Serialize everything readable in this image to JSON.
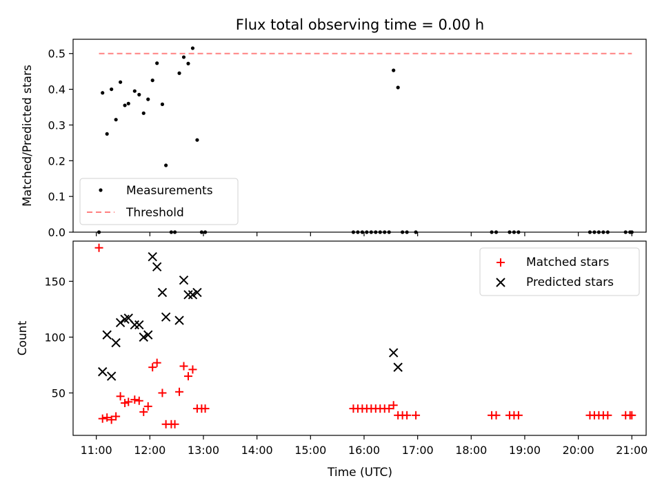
{
  "figure": {
    "title": "Flux total observing time = 0.00 h"
  },
  "chart_data": [
    {
      "type": "scatter",
      "title": "Flux total observing time = 0.00 h",
      "xlabel": "",
      "ylabel": "Matched/Predicted stars",
      "xlim": [
        "10:34",
        "21:16"
      ],
      "ylim": [
        0,
        0.54
      ],
      "yticks": [
        "0.0",
        "0.1",
        "0.2",
        "0.3",
        "0.4",
        "0.5"
      ],
      "legend": {
        "placement": "lower-left",
        "entries": [
          "Measurements",
          "Threshold"
        ]
      },
      "series": [
        {
          "name": "Measurements",
          "color": "#000000",
          "marker": "dot",
          "points": [
            [
              "11:03",
              0.0
            ],
            [
              "11:07",
              0.39
            ],
            [
              "11:12",
              0.275
            ],
            [
              "11:17",
              0.4
            ],
            [
              "11:22",
              0.315
            ],
            [
              "11:27",
              0.42
            ],
            [
              "11:32",
              0.355
            ],
            [
              "11:36",
              0.36
            ],
            [
              "11:43",
              0.395
            ],
            [
              "11:48",
              0.385
            ],
            [
              "11:53",
              0.333
            ],
            [
              "11:58",
              0.372
            ],
            [
              "12:03",
              0.425
            ],
            [
              "12:08",
              0.473
            ],
            [
              "12:14",
              0.358
            ],
            [
              "12:18",
              0.187
            ],
            [
              "12:24",
              0.0
            ],
            [
              "12:28",
              0.0
            ],
            [
              "12:33",
              0.445
            ],
            [
              "12:38",
              0.49
            ],
            [
              "12:43",
              0.472
            ],
            [
              "12:48",
              0.515
            ],
            [
              "12:53",
              0.258
            ],
            [
              "12:58",
              0.0
            ],
            [
              "13:02",
              0.0
            ],
            [
              "15:48",
              0.0
            ],
            [
              "15:53",
              0.0
            ],
            [
              "15:58",
              0.0
            ],
            [
              "16:03",
              0.0
            ],
            [
              "16:08",
              0.0
            ],
            [
              "16:13",
              0.0
            ],
            [
              "16:18",
              0.0
            ],
            [
              "16:23",
              0.0
            ],
            [
              "16:28",
              0.0
            ],
            [
              "16:33",
              0.453
            ],
            [
              "16:38",
              0.405
            ],
            [
              "16:43",
              0.0
            ],
            [
              "16:48",
              0.0
            ],
            [
              "16:58",
              0.0
            ],
            [
              "18:23",
              0.0
            ],
            [
              "18:28",
              0.0
            ],
            [
              "18:43",
              0.0
            ],
            [
              "18:48",
              0.0
            ],
            [
              "18:53",
              0.0
            ],
            [
              "20:13",
              0.0
            ],
            [
              "20:18",
              0.0
            ],
            [
              "20:23",
              0.0
            ],
            [
              "20:28",
              0.0
            ],
            [
              "20:33",
              0.0
            ],
            [
              "20:53",
              0.0
            ],
            [
              "20:58",
              0.0
            ],
            [
              "21:00",
              0.0
            ]
          ]
        },
        {
          "name": "Threshold",
          "color": "#ff8080",
          "style": "dashed",
          "points": [
            [
              "11:03",
              0.5
            ],
            [
              "21:00",
              0.5
            ]
          ]
        }
      ]
    },
    {
      "type": "scatter",
      "title": "",
      "xlabel": "Time (UTC)",
      "ylabel": "Count",
      "xlim": [
        "10:34",
        "21:16"
      ],
      "ylim": [
        12,
        186
      ],
      "yticks": [
        "50",
        "100",
        "150"
      ],
      "xticks": [
        "11:00",
        "12:00",
        "13:00",
        "14:00",
        "15:00",
        "16:00",
        "17:00",
        "18:00",
        "19:00",
        "20:00",
        "21:00"
      ],
      "legend": {
        "placement": "upper-right",
        "entries": [
          "Matched stars",
          "Predicted stars"
        ]
      },
      "series": [
        {
          "name": "Matched stars",
          "color": "#ff0000",
          "marker": "plus",
          "points": [
            [
              "11:03",
              180
            ],
            [
              "11:07",
              27
            ],
            [
              "11:12",
              28
            ],
            [
              "11:17",
              26
            ],
            [
              "11:22",
              29
            ],
            [
              "11:27",
              47
            ],
            [
              "11:32",
              41
            ],
            [
              "11:36",
              42
            ],
            [
              "11:43",
              44
            ],
            [
              "11:48",
              43
            ],
            [
              "11:53",
              33
            ],
            [
              "11:58",
              38
            ],
            [
              "12:03",
              73
            ],
            [
              "12:08",
              77
            ],
            [
              "12:14",
              50
            ],
            [
              "12:18",
              22
            ],
            [
              "12:24",
              22
            ],
            [
              "12:28",
              22
            ],
            [
              "12:33",
              51
            ],
            [
              "12:38",
              74
            ],
            [
              "12:43",
              65
            ],
            [
              "12:48",
              71
            ],
            [
              "12:53",
              36
            ],
            [
              "12:58",
              36
            ],
            [
              "13:02",
              36
            ],
            [
              "15:48",
              36
            ],
            [
              "15:53",
              36
            ],
            [
              "15:58",
              36
            ],
            [
              "16:03",
              36
            ],
            [
              "16:08",
              36
            ],
            [
              "16:13",
              36
            ],
            [
              "16:18",
              36
            ],
            [
              "16:23",
              36
            ],
            [
              "16:28",
              36
            ],
            [
              "16:33",
              39
            ],
            [
              "16:38",
              30
            ],
            [
              "16:43",
              30
            ],
            [
              "16:48",
              30
            ],
            [
              "16:58",
              30
            ],
            [
              "18:23",
              30
            ],
            [
              "18:28",
              30
            ],
            [
              "18:43",
              30
            ],
            [
              "18:48",
              30
            ],
            [
              "18:53",
              30
            ],
            [
              "20:13",
              30
            ],
            [
              "20:18",
              30
            ],
            [
              "20:23",
              30
            ],
            [
              "20:28",
              30
            ],
            [
              "20:33",
              30
            ],
            [
              "20:53",
              30
            ],
            [
              "20:58",
              30
            ],
            [
              "21:00",
              30
            ]
          ]
        },
        {
          "name": "Predicted stars",
          "color": "#000000",
          "marker": "x",
          "points": [
            [
              "11:07",
              69
            ],
            [
              "11:12",
              102
            ],
            [
              "11:17",
              65
            ],
            [
              "11:22",
              95
            ],
            [
              "11:27",
              113
            ],
            [
              "11:32",
              116
            ],
            [
              "11:36",
              117
            ],
            [
              "11:43",
              111
            ],
            [
              "11:48",
              111
            ],
            [
              "11:53",
              100
            ],
            [
              "11:58",
              102
            ],
            [
              "12:03",
              172
            ],
            [
              "12:08",
              163
            ],
            [
              "12:14",
              140
            ],
            [
              "12:18",
              118
            ],
            [
              "12:33",
              115
            ],
            [
              "12:38",
              151
            ],
            [
              "12:43",
              138
            ],
            [
              "12:48",
              138
            ],
            [
              "12:53",
              140
            ],
            [
              "16:33",
              86
            ],
            [
              "16:38",
              73
            ]
          ]
        }
      ]
    }
  ]
}
